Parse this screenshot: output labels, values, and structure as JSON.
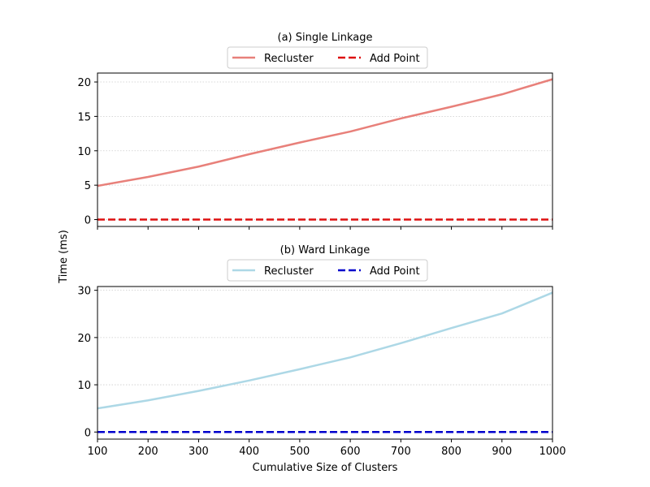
{
  "figure": {
    "ylabel": "Time (ms)"
  },
  "chart_data": [
    {
      "type": "line",
      "title": "(a) Single Linkage",
      "xlabel": "",
      "ylabel": "Time (ms)",
      "xlim": [
        100,
        1000
      ],
      "ylim": [
        -1,
        21.3
      ],
      "xticks": [
        100,
        200,
        300,
        400,
        500,
        600,
        700,
        800,
        900,
        1000
      ],
      "yticks": [
        0,
        5,
        10,
        15,
        20
      ],
      "show_xtick_labels": false,
      "grid": "y-dotted",
      "legend": {
        "placement": "top-center-outside",
        "ncol": 2
      },
      "x": [
        100,
        200,
        300,
        400,
        500,
        600,
        700,
        800,
        900,
        1000
      ],
      "series": [
        {
          "name": "Recluster",
          "color": "#e8807a",
          "style": "solid",
          "values": [
            4.9,
            6.2,
            7.7,
            9.5,
            11.2,
            12.8,
            14.7,
            16.4,
            18.2,
            20.4
          ]
        },
        {
          "name": "Add Point",
          "color": "#dd1111",
          "style": "dashed",
          "values": [
            0,
            0,
            0,
            0,
            0,
            0,
            0,
            0,
            0,
            0
          ]
        }
      ]
    },
    {
      "type": "line",
      "title": "(b) Ward Linkage",
      "xlabel": "Cumulative Size of Clusters",
      "ylabel": "Time (ms)",
      "xlim": [
        100,
        1000
      ],
      "ylim": [
        -1.5,
        30.8
      ],
      "xticks": [
        100,
        200,
        300,
        400,
        500,
        600,
        700,
        800,
        900,
        1000
      ],
      "yticks": [
        0,
        10,
        20,
        30
      ],
      "show_xtick_labels": true,
      "grid": "y-dotted",
      "legend": {
        "placement": "top-center-outside",
        "ncol": 2
      },
      "x": [
        100,
        200,
        300,
        400,
        500,
        600,
        700,
        800,
        900,
        1000
      ],
      "series": [
        {
          "name": "Recluster",
          "color": "#add8e6",
          "style": "solid",
          "values": [
            5.0,
            6.7,
            8.7,
            10.9,
            13.3,
            15.8,
            18.8,
            22.0,
            25.1,
            29.5
          ]
        },
        {
          "name": "Add Point",
          "color": "#0000cc",
          "style": "dashed",
          "values": [
            0,
            0,
            0,
            0,
            0,
            0,
            0,
            0,
            0,
            0
          ]
        }
      ]
    }
  ]
}
